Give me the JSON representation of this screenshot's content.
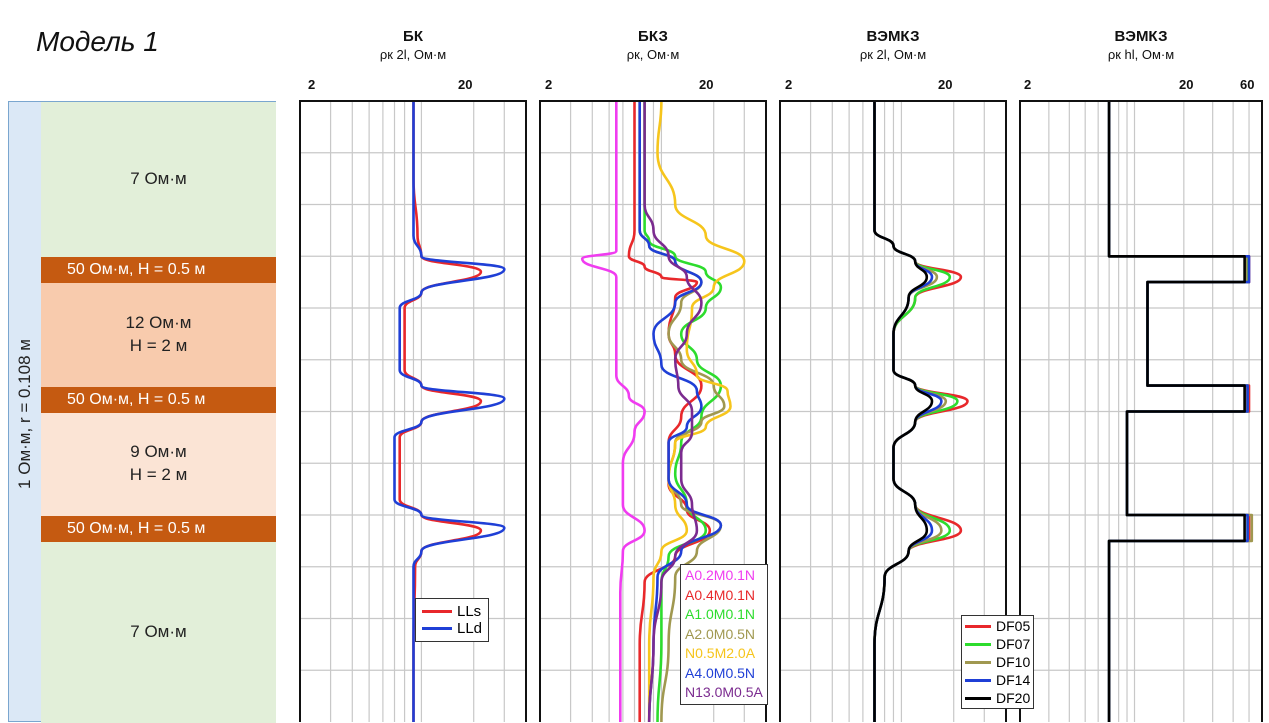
{
  "title": "Модель 1",
  "model": {
    "resistivity_label": "1 Ом·м, r = 0.108 м",
    "layers": [
      {
        "label": "7 Ом·м",
        "sub": "",
        "color": "#e2efd9",
        "kind": "thick",
        "top_m": 0,
        "bottom_m": 3.0
      },
      {
        "label": "50 Ом·м, H = 0.5 м",
        "sub": "",
        "color": "#c55a11",
        "kind": "thin",
        "top_m": 3.0,
        "bottom_m": 3.5
      },
      {
        "label": "12 Ом·м",
        "sub": "H = 2 м",
        "color": "#f8cbad",
        "kind": "thick",
        "top_m": 3.5,
        "bottom_m": 5.5
      },
      {
        "label": "50 Ом·м, H = 0.5 м",
        "sub": "",
        "color": "#c55a11",
        "kind": "thin",
        "top_m": 5.5,
        "bottom_m": 6.0
      },
      {
        "label": "9 Ом·м",
        "sub": "H = 2 м",
        "color": "#fbe4d5",
        "kind": "thick",
        "top_m": 6.0,
        "bottom_m": 8.0
      },
      {
        "label": "50 Ом·м, H = 0.5 м",
        "sub": "",
        "color": "#c55a11",
        "kind": "thin",
        "top_m": 8.0,
        "bottom_m": 8.5
      },
      {
        "label": "7 Ом·м",
        "sub": "",
        "color": "#e2efd9",
        "kind": "thick",
        "top_m": 8.5,
        "bottom_m": 12.0
      }
    ]
  },
  "tracks": [
    {
      "name": "БК",
      "sub": "ρк 2l, Ом·м",
      "ticks": [
        "2",
        "20"
      ]
    },
    {
      "name": "БКЗ",
      "sub": "ρк, Ом·м",
      "ticks": [
        "2",
        "20"
      ]
    },
    {
      "name": "ВЭМКЗ",
      "sub": "ρк 2l, Ом·м",
      "ticks": [
        "2",
        "20"
      ]
    },
    {
      "name": "ВЭМКЗ",
      "sub": "ρк hl, Ом·м",
      "ticks": [
        "2",
        "20",
        "60"
      ]
    }
  ],
  "chart_data": [
    {
      "type": "line",
      "title": "БК",
      "xlabel": "ρк 2l, Ом·м",
      "xscale": "log",
      "xlim": [
        2,
        40
      ],
      "ylim": [
        0,
        12
      ],
      "legend_position": "bottom-right",
      "series": [
        {
          "name": "LLs",
          "color": "#e8282b",
          "x": [
            9,
            9,
            9.5,
            10,
            22,
            10,
            8,
            8,
            8,
            10,
            22,
            10,
            7.5,
            7.5,
            7.5,
            10,
            22,
            10,
            9.2,
            9,
            9
          ],
          "y": [
            0,
            1.5,
            2.6,
            3.0,
            3.3,
            3.7,
            4.0,
            4.8,
            5.2,
            5.5,
            5.8,
            6.2,
            6.5,
            7.3,
            7.7,
            8.0,
            8.3,
            8.7,
            9.0,
            10.5,
            12
          ]
        },
        {
          "name": "LLd",
          "color": "#1f3fd6",
          "x": [
            9,
            9,
            9,
            10,
            30,
            10,
            7.5,
            7.5,
            7.5,
            10,
            30,
            10,
            7,
            7,
            7,
            10,
            30,
            10,
            9,
            9,
            9
          ],
          "y": [
            0,
            1.5,
            2.6,
            3.0,
            3.25,
            3.7,
            4.0,
            4.8,
            5.2,
            5.5,
            5.75,
            6.2,
            6.5,
            7.3,
            7.7,
            8.0,
            8.25,
            8.7,
            9.0,
            10.5,
            12
          ]
        }
      ]
    },
    {
      "type": "line",
      "title": "БКЗ",
      "xlabel": "ρк, Ом·м",
      "xscale": "log",
      "xlim": [
        2,
        40
      ],
      "ylim": [
        0,
        12
      ],
      "legend_position": "bottom-right",
      "series": [
        {
          "name": "A0.2M0.1N",
          "color": "#f03cf0",
          "x": [
            5.5,
            5.5,
            5.5,
            3.5,
            5.5,
            5.5,
            5.5,
            6.5,
            8,
            7,
            6,
            6,
            6,
            8,
            6,
            5.8,
            5.8
          ],
          "y": [
            0,
            1.5,
            2.9,
            3.05,
            3.4,
            4.5,
            5.3,
            5.7,
            6.0,
            6.4,
            7.0,
            7.5,
            7.8,
            8.3,
            8.7,
            9.5,
            12
          ]
        },
        {
          "name": "A0.4M0.1N",
          "color": "#e8282b",
          "x": [
            7,
            7,
            7,
            6.5,
            8,
            10,
            16,
            12,
            11,
            12,
            17,
            13,
            11,
            11,
            14,
            19,
            12,
            8,
            7.5,
            7.5
          ],
          "y": [
            0,
            1.5,
            2.5,
            3.0,
            3.2,
            3.4,
            3.5,
            3.8,
            4.5,
            4.9,
            5.5,
            6.1,
            6.6,
            7.4,
            7.9,
            8.3,
            8.8,
            9.3,
            10.5,
            12
          ]
        },
        {
          "name": "A1.0M0.1N",
          "color": "#2ddc2d",
          "x": [
            8,
            8,
            8,
            8.5,
            12,
            18,
            22,
            18,
            13,
            16,
            22,
            17,
            13,
            12,
            14,
            18,
            11,
            10,
            10,
            9.5
          ],
          "y": [
            0,
            1.5,
            2.5,
            2.7,
            3.0,
            3.3,
            3.6,
            4.0,
            4.5,
            5.0,
            5.5,
            6.1,
            6.6,
            7.2,
            7.8,
            8.3,
            8.8,
            9.3,
            10.5,
            12
          ]
        },
        {
          "name": "A2.0M0.5N",
          "color": "#a09850",
          "x": [
            7.5,
            7.5,
            7.5,
            8.5,
            12,
            17,
            13,
            11,
            13,
            20,
            23,
            17,
            12,
            11,
            13,
            22,
            16,
            12,
            11,
            10
          ],
          "y": [
            0,
            1.5,
            2.5,
            2.8,
            3.1,
            3.5,
            3.9,
            4.5,
            5.0,
            5.5,
            5.9,
            6.2,
            6.6,
            7.3,
            7.8,
            8.2,
            8.7,
            9.2,
            10.5,
            12
          ]
        },
        {
          "name": "N0.5M2.0A",
          "color": "#f6c51c",
          "x": [
            10,
            9.5,
            12,
            18,
            30,
            20,
            15,
            14,
            16,
            24,
            25,
            18,
            12,
            11,
            12,
            14,
            10,
            9,
            8.5,
            8.5
          ],
          "y": [
            0,
            1.0,
            2.0,
            2.6,
            3.1,
            3.6,
            4.0,
            4.8,
            5.3,
            5.6,
            5.9,
            6.3,
            6.6,
            7.3,
            7.8,
            8.3,
            8.7,
            9.2,
            10.5,
            12
          ]
        },
        {
          "name": "A4.0M0.5N",
          "color": "#1f3fd6",
          "x": [
            7.5,
            7.5,
            7.5,
            8.5,
            12,
            17,
            12,
            9,
            10,
            16,
            17,
            14,
            11,
            11,
            14,
            22,
            13,
            9.5,
            9,
            8.5
          ],
          "y": [
            0,
            1.5,
            2.5,
            2.8,
            3.1,
            3.5,
            3.9,
            4.5,
            5.1,
            5.6,
            5.9,
            6.3,
            6.6,
            7.3,
            7.8,
            8.2,
            8.7,
            9.2,
            10.5,
            12
          ]
        },
        {
          "name": "N13.0M0.5A",
          "color": "#7b2b8f",
          "x": [
            8,
            8,
            8,
            9,
            11,
            14,
            17,
            14,
            12,
            12.5,
            15,
            15,
            13,
            13,
            15,
            16,
            12,
            10,
            9,
            8.5
          ],
          "y": [
            0,
            1.5,
            2.0,
            2.5,
            3.0,
            3.4,
            3.9,
            4.5,
            5.0,
            5.5,
            6.0,
            6.4,
            6.8,
            7.3,
            7.8,
            8.3,
            8.8,
            9.3,
            10.5,
            12
          ]
        }
      ]
    },
    {
      "type": "line",
      "title": "ВЭМКЗ",
      "xlabel": "ρк 2l, Ом·м",
      "xscale": "log",
      "xlim": [
        2,
        40
      ],
      "ylim": [
        0,
        12
      ],
      "legend_position": "bottom-right",
      "series": [
        {
          "name": "DF05",
          "color": "#e8282b",
          "x": [
            7,
            7,
            7,
            9,
            12,
            22,
            12,
            9,
            9,
            12,
            24,
            12,
            9,
            9,
            12,
            22,
            11,
            8,
            7,
            7
          ],
          "y": [
            0,
            1.5,
            2.5,
            2.8,
            3.1,
            3.4,
            3.8,
            4.5,
            5.2,
            5.5,
            5.8,
            6.2,
            6.7,
            7.3,
            7.8,
            8.3,
            8.7,
            9.2,
            10.5,
            12
          ]
        },
        {
          "name": "DF07",
          "color": "#2ddc2d",
          "x": [
            7,
            7,
            7,
            9,
            12,
            19,
            12,
            9,
            9,
            12,
            21,
            12,
            9,
            9,
            12,
            19,
            11,
            8,
            7,
            7
          ],
          "y": [
            0,
            1.5,
            2.5,
            2.8,
            3.1,
            3.4,
            3.8,
            4.5,
            5.2,
            5.5,
            5.8,
            6.2,
            6.7,
            7.3,
            7.8,
            8.3,
            8.7,
            9.2,
            10.5,
            12
          ]
        },
        {
          "name": "DF10",
          "color": "#a09850",
          "x": [
            7,
            7,
            7,
            9,
            12,
            16,
            11,
            9,
            9,
            12,
            18,
            12,
            9,
            9,
            12,
            17,
            11,
            8,
            7,
            7
          ],
          "y": [
            0,
            1.5,
            2.5,
            2.8,
            3.1,
            3.4,
            3.8,
            4.5,
            5.2,
            5.5,
            5.8,
            6.2,
            6.7,
            7.3,
            7.8,
            8.3,
            8.7,
            9.2,
            10.5,
            12
          ]
        },
        {
          "name": "DF14",
          "color": "#1f3fd6",
          "x": [
            7,
            7,
            7,
            9,
            12,
            15,
            11,
            9,
            9,
            12,
            17,
            12,
            9,
            9,
            12,
            15,
            11,
            8,
            7,
            7
          ],
          "y": [
            0,
            1.5,
            2.5,
            2.8,
            3.1,
            3.4,
            3.8,
            4.5,
            5.2,
            5.5,
            5.8,
            6.2,
            6.7,
            7.3,
            7.8,
            8.3,
            8.7,
            9.2,
            10.5,
            12
          ]
        },
        {
          "name": "DF20",
          "color": "#000000",
          "x": [
            7,
            7,
            7,
            9,
            12,
            14,
            11,
            9,
            9,
            12,
            15,
            12,
            9,
            9,
            12,
            14,
            11,
            8,
            7,
            7
          ],
          "y": [
            0,
            1.5,
            2.5,
            2.8,
            3.1,
            3.4,
            3.8,
            4.5,
            5.2,
            5.5,
            5.8,
            6.2,
            6.7,
            7.3,
            7.8,
            8.3,
            8.7,
            9.2,
            10.5,
            12
          ]
        }
      ]
    },
    {
      "type": "line",
      "title": "ВЭМКЗ",
      "xlabel": "ρк hl, Ом·м",
      "xscale": "log",
      "xlim": [
        2,
        60
      ],
      "ylim": [
        0,
        12
      ],
      "series": [
        {
          "name": "DF05",
          "color": "#e8282b",
          "x": [
            7,
            7,
            50,
            50,
            12,
            12,
            50,
            50,
            9,
            9,
            50,
            50,
            7,
            7
          ],
          "y": [
            0,
            3.0,
            3.0,
            3.5,
            3.5,
            5.5,
            5.5,
            6.0,
            6.0,
            8.0,
            8.0,
            8.5,
            8.5,
            12
          ]
        },
        {
          "name": "DF07",
          "color": "#2ddc2d",
          "x": [
            7,
            7,
            49,
            49,
            12,
            12,
            49,
            49,
            9,
            9,
            49,
            49,
            7,
            7
          ],
          "y": [
            0,
            3.0,
            3.0,
            3.5,
            3.5,
            5.5,
            5.5,
            6.0,
            6.0,
            8.0,
            8.0,
            8.5,
            8.5,
            12
          ]
        },
        {
          "name": "DF10",
          "color": "#a09850",
          "x": [
            7,
            7,
            48,
            48,
            12,
            12,
            48,
            48,
            9,
            9,
            52,
            52,
            7,
            7
          ],
          "y": [
            0,
            3.0,
            3.0,
            3.5,
            3.5,
            5.5,
            5.5,
            6.0,
            6.0,
            8.0,
            8.0,
            8.5,
            8.5,
            12
          ]
        },
        {
          "name": "DF14",
          "color": "#1f3fd6",
          "x": [
            7,
            7,
            50,
            50,
            12,
            12,
            49,
            49,
            9,
            9,
            49,
            49,
            7,
            7
          ],
          "y": [
            0,
            3.0,
            3.0,
            3.5,
            3.5,
            5.5,
            5.5,
            6.0,
            6.0,
            8.0,
            8.0,
            8.5,
            8.5,
            12
          ]
        },
        {
          "name": "DF20",
          "color": "#000000",
          "x": [
            7,
            7,
            47,
            47,
            12,
            12,
            47,
            47,
            9,
            9,
            47,
            47,
            7,
            7
          ],
          "y": [
            0,
            3.0,
            3.0,
            3.5,
            3.5,
            5.5,
            5.5,
            6.0,
            6.0,
            8.0,
            8.0,
            8.5,
            8.5,
            12
          ]
        }
      ]
    }
  ]
}
